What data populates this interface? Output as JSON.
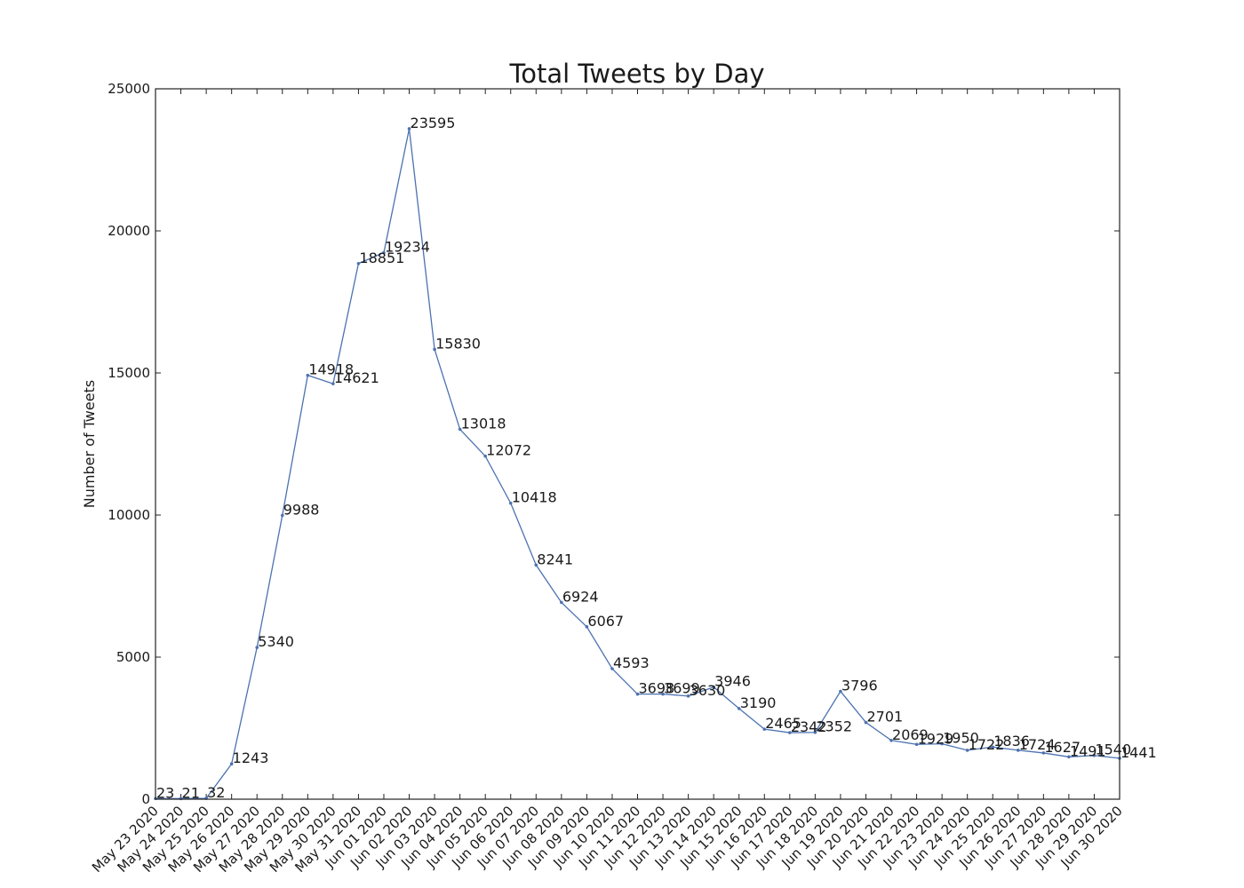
{
  "chart_data": {
    "type": "line",
    "title": "Total Tweets by Day",
    "xlabel": "",
    "ylabel": "Number of Tweets",
    "ylim": [
      0,
      25000
    ],
    "yticks": [
      0,
      5000,
      10000,
      15000,
      20000,
      25000
    ],
    "grid": false,
    "line_color": "#4c72b0",
    "categories": [
      "May 23 2020",
      "May 24 2020",
      "May 25 2020",
      "May 26 2020",
      "May 27 2020",
      "May 28 2020",
      "May 29 2020",
      "May 30 2020",
      "May 31 2020",
      "Jun 01 2020",
      "Jun 02 2020",
      "Jun 03 2020",
      "Jun 04 2020",
      "Jun 05 2020",
      "Jun 06 2020",
      "Jun 07 2020",
      "Jun 08 2020",
      "Jun 09 2020",
      "Jun 10 2020",
      "Jun 11 2020",
      "Jun 12 2020",
      "Jun 13 2020",
      "Jun 14 2020",
      "Jun 15 2020",
      "Jun 16 2020",
      "Jun 17 2020",
      "Jun 18 2020",
      "Jun 19 2020",
      "Jun 20 2020",
      "Jun 21 2020",
      "Jun 22 2020",
      "Jun 23 2020",
      "Jun 24 2020",
      "Jun 25 2020",
      "Jun 26 2020",
      "Jun 27 2020",
      "Jun 28 2020",
      "Jun 29 2020",
      "Jun 30 2020"
    ],
    "values": [
      23,
      21,
      32,
      1243,
      5340,
      9988,
      14918,
      14621,
      18851,
      19234,
      23595,
      15830,
      13018,
      12072,
      10418,
      8241,
      6924,
      6067,
      4593,
      3698,
      3699,
      3630,
      3946,
      3190,
      2465,
      2342,
      2352,
      3796,
      2701,
      2069,
      1929,
      1950,
      1722,
      1836,
      1724,
      1627,
      1491,
      1540,
      1441
    ]
  }
}
